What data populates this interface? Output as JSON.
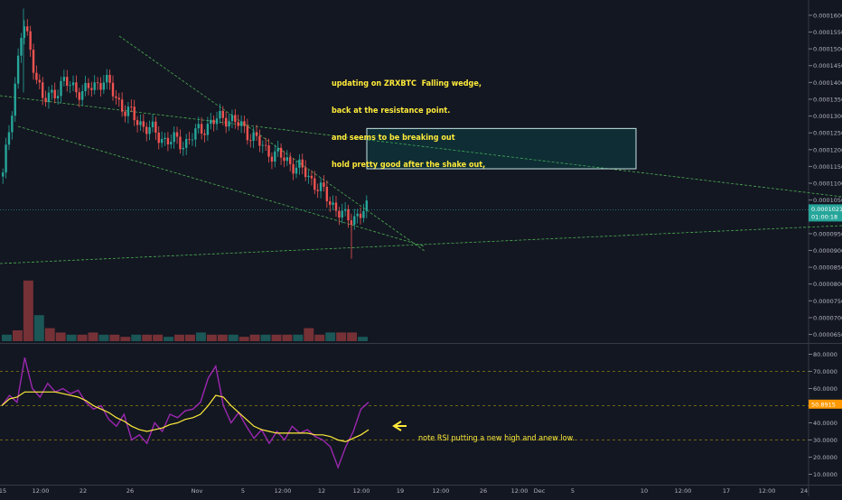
{
  "chart_data": [
    {
      "type": "candlestick",
      "title": "",
      "symbol_note": "updating on ZRXBTC  Falling wedge,",
      "y_axis": {
        "min": 6.3e-05,
        "max": 0.000164,
        "ticks": [
          "0.00016000",
          "0.00015500",
          "0.00015000",
          "0.00014500",
          "0.00014000",
          "0.00013500",
          "0.00013000",
          "0.00012500",
          "0.00012000",
          "0.00011500",
          "0.00011000",
          "0.00010500",
          "0.00010000",
          "0.00009500",
          "0.00009000",
          "0.00008500",
          "0.00008000",
          "0.00007500",
          "0.00007000",
          "0.00006500"
        ]
      },
      "price_label": "0.00010211",
      "countdown_label": "01:00:18",
      "price_series_approx": [
        {
          "x": "Oct 15",
          "y": 0.000112
        },
        {
          "x": "Oct 16",
          "y": 0.000158
        },
        {
          "x": "Oct 17",
          "y": 0.000134
        },
        {
          "x": "Oct 19",
          "y": 0.00014
        },
        {
          "x": "Oct 21",
          "y": 0.000137
        },
        {
          "x": "Oct 22",
          "y": 0.000141
        },
        {
          "x": "Oct 24",
          "y": 0.000132
        },
        {
          "x": "Oct 26",
          "y": 0.000127
        },
        {
          "x": "Oct 28",
          "y": 0.000123
        },
        {
          "x": "Oct 30",
          "y": 0.000122
        },
        {
          "x": "Nov 1",
          "y": 0.000127
        },
        {
          "x": "Nov 2",
          "y": 0.00013
        },
        {
          "x": "Nov 4",
          "y": 0.000126
        },
        {
          "x": "Nov 6",
          "y": 0.00012
        },
        {
          "x": "Nov 8",
          "y": 0.000117
        },
        {
          "x": "Nov 10",
          "y": 0.000113
        },
        {
          "x": "Nov 12",
          "y": 0.000106
        },
        {
          "x": "Nov 13",
          "y": 9.9e-05
        },
        {
          "x": "Nov 14",
          "y": 0.000102
        }
      ],
      "resistance_box": {
        "price_top": 0.0001263,
        "price_bottom": 0.0001143
      },
      "volume_series_approx": [
        3,
        5,
        28,
        12,
        6,
        4,
        3,
        3,
        4,
        3,
        3,
        2,
        3,
        3,
        3,
        2,
        3,
        3,
        4,
        3,
        3,
        3,
        2,
        3,
        3,
        3,
        3,
        3,
        6,
        3,
        4,
        4,
        4,
        2
      ]
    },
    {
      "type": "line",
      "title": "",
      "y_axis": {
        "min": 5,
        "max": 85,
        "ticks": [
          "80.0000",
          "70.0000",
          "60.0000",
          "50.0000",
          "40.0000",
          "30.0000",
          "20.0000",
          "10.0000"
        ]
      },
      "levels": [
        70,
        50,
        30
      ],
      "value_label": "50.8915",
      "series": [
        {
          "name": "",
          "color": "#9c27b0",
          "values": [
            50,
            56,
            52,
            78,
            60,
            55,
            63,
            58,
            60,
            57,
            59,
            52,
            48,
            50,
            42,
            38,
            45,
            30,
            33,
            28,
            40,
            35,
            45,
            43,
            47,
            48,
            52,
            66,
            73,
            50,
            40,
            46,
            38,
            31,
            36,
            28,
            35,
            30,
            38,
            34,
            36,
            32,
            30,
            26,
            14,
            26,
            35,
            48,
            52
          ]
        },
        {
          "name": "",
          "color": "#ffeb3b",
          "values": [
            50,
            54,
            55,
            58,
            58,
            58,
            58,
            58,
            57,
            56,
            55,
            53,
            50,
            48,
            46,
            43,
            41,
            38,
            36,
            35,
            36,
            37,
            39,
            40,
            42,
            43,
            45,
            50,
            56,
            55,
            50,
            46,
            42,
            38,
            36,
            35,
            34,
            34,
            34,
            34,
            34,
            33,
            33,
            32,
            30,
            29,
            31,
            33,
            36
          ]
        }
      ]
    }
  ],
  "x_axis_labels": [
    "15",
    "12:00",
    "22",
    "26",
    "Nov",
    "5",
    "12:00",
    "12",
    "12:00",
    "19",
    "12:00",
    "26",
    "12:00",
    "Dec",
    "5",
    "10",
    "12:00",
    "17",
    "12:00",
    "24"
  ],
  "annotations": {
    "main_lines": [
      "updating on ZRXBTC  Falling wedge,",
      "back at the resistance point.",
      "and seems to be breaking out",
      "hold pretty good after the shake out,"
    ],
    "rsi_note": "note RSI putting a new high and anew low."
  },
  "colors": {
    "background": "#131722",
    "up": "#26a69a",
    "down": "#ef5350",
    "trendline": "#4caf50",
    "note": "#ffeb3b",
    "rsi": "#9c27b0",
    "rsi_ma": "#ffeb3b",
    "price_tag": "#26a69a"
  }
}
